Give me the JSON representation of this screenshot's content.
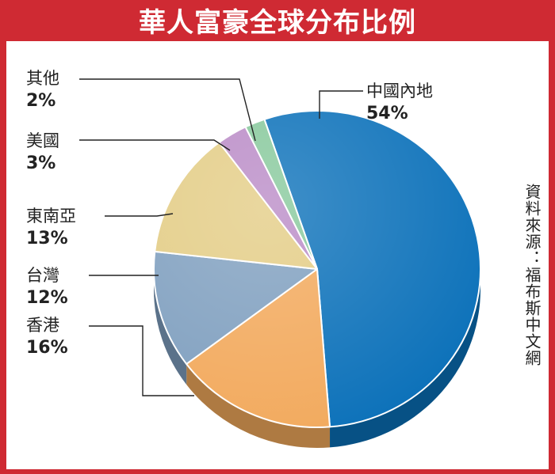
{
  "title": "華人富豪全球分布比例",
  "source": "資料來源：福布斯中文網",
  "chart_data": {
    "type": "pie",
    "title": "華人富豪全球分布比例",
    "slices": [
      {
        "label": "中國內地",
        "value": 54,
        "value_label": "54%",
        "color": "#0a70b9"
      },
      {
        "label": "香港",
        "value": 16,
        "value_label": "16%",
        "color": "#f2a95c"
      },
      {
        "label": "台灣",
        "value": 12,
        "value_label": "12%",
        "color": "#7f9fbf"
      },
      {
        "label": "東南亞",
        "value": 13,
        "value_label": "13%",
        "color": "#e3cc84"
      },
      {
        "label": "美國",
        "value": 3,
        "value_label": "3%",
        "color": "#b98ac6"
      },
      {
        "label": "其他",
        "value": 2,
        "value_label": "2%",
        "color": "#86c89b"
      }
    ],
    "style": "3d-pie",
    "legend": "none"
  }
}
